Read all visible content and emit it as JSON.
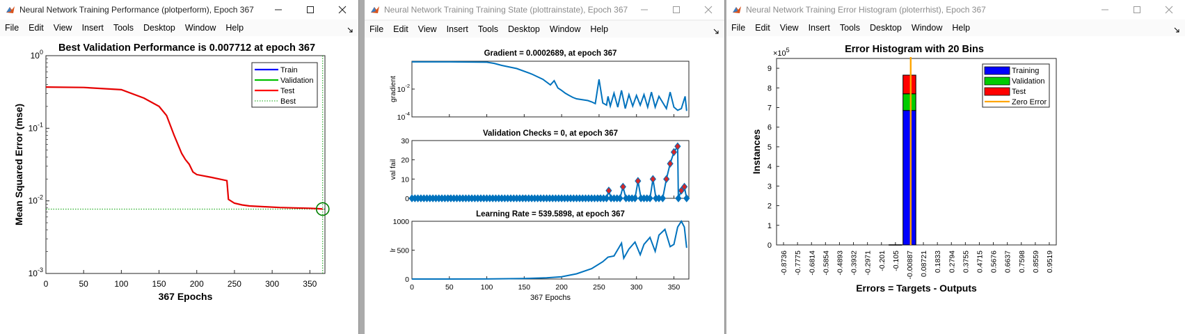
{
  "windows": [
    {
      "title": "Neural Network Training Performance (plotperform), Epoch 367",
      "menu": [
        "File",
        "Edit",
        "View",
        "Insert",
        "Tools",
        "Desktop",
        "Window",
        "Help"
      ]
    },
    {
      "title": "Neural Network Training Training State (plottrainstate), Epoch 367",
      "menu": [
        "File",
        "Edit",
        "View",
        "Insert",
        "Tools",
        "Desktop",
        "Window",
        "Help"
      ]
    },
    {
      "title": "Neural Network Training Error Histogram (ploterrhist), Epoch 367",
      "menu": [
        "File",
        "Edit",
        "View",
        "Insert",
        "Tools",
        "Desktop",
        "Window",
        "Help"
      ]
    }
  ],
  "chart_data": [
    {
      "type": "line",
      "title": "Best Validation Performance is 0.007712 at epoch 367",
      "xlabel": "367 Epochs",
      "ylabel": "Mean Squared Error  (mse)",
      "yscale": "log",
      "xlim": [
        0,
        370
      ],
      "ylim": [
        0.001,
        1
      ],
      "xticks": [
        "0",
        "50",
        "100",
        "150",
        "200",
        "250",
        "300",
        "350"
      ],
      "yticks": [
        {
          "base": "10",
          "exp": "0"
        },
        {
          "base": "10",
          "exp": "-1"
        },
        {
          "base": "10",
          "exp": "-2"
        },
        {
          "base": "10",
          "exp": "-3"
        }
      ],
      "legend": {
        "position": "top-right",
        "entries": [
          {
            "name": "Train",
            "color": "#0000ff",
            "style": "solid"
          },
          {
            "name": "Validation",
            "color": "#00c000",
            "style": "solid"
          },
          {
            "name": "Test",
            "color": "#ff0000",
            "style": "solid"
          },
          {
            "name": "Best",
            "color": "#00a000",
            "style": "dotted"
          }
        ]
      },
      "series": [
        {
          "name": "Test",
          "color": "#e60000",
          "x": [
            0,
            50,
            100,
            130,
            150,
            160,
            170,
            180,
            185,
            190,
            195,
            200,
            220,
            240,
            242,
            250,
            260,
            270,
            290,
            310,
            330,
            350,
            360,
            367
          ],
          "y": [
            0.37,
            0.365,
            0.34,
            0.26,
            0.2,
            0.15,
            0.08,
            0.045,
            0.037,
            0.032,
            0.025,
            0.023,
            0.021,
            0.019,
            0.0105,
            0.0093,
            0.0088,
            0.0085,
            0.0083,
            0.0081,
            0.008,
            0.0079,
            0.0078,
            0.007712
          ]
        }
      ],
      "best": {
        "epoch": 367,
        "value": 0.007712
      }
    },
    {
      "type": "line",
      "panels": [
        {
          "title": "Gradient = 0.0002689, at epoch 367",
          "ylabel": "gradient",
          "yscale": "log",
          "ylim": [
            0.0001,
            1
          ],
          "yticks": [
            {
              "base": "10",
              "exp": "-2"
            },
            {
              "base": "10",
              "exp": "-4"
            }
          ],
          "x": [
            0,
            50,
            100,
            110,
            120,
            140,
            160,
            175,
            185,
            190,
            195,
            200,
            205,
            210,
            215,
            220,
            235,
            240,
            245,
            250,
            255,
            260,
            262,
            265,
            270,
            275,
            280,
            285,
            290,
            295,
            300,
            305,
            310,
            315,
            320,
            325,
            330,
            340,
            345,
            350,
            355,
            360,
            365,
            367
          ],
          "y": [
            0.9,
            0.9,
            0.85,
            0.7,
            0.5,
            0.3,
            0.12,
            0.05,
            0.02,
            0.04,
            0.012,
            0.008,
            0.005,
            0.0035,
            0.0025,
            0.002,
            0.0015,
            0.0012,
            0.0009,
            0.05,
            0.001,
            0.0007,
            0.003,
            0.0006,
            0.005,
            0.0005,
            0.008,
            0.0004,
            0.004,
            0.0006,
            0.0035,
            0.0007,
            0.004,
            0.0005,
            0.006,
            0.0005,
            0.003,
            0.0004,
            0.006,
            0.0005,
            0.0003,
            0.0004,
            0.003,
            0.0002689
          ]
        },
        {
          "title": "Validation Checks = 0, at epoch 367",
          "ylabel": "val fail",
          "ylim": [
            0,
            30
          ],
          "yticks": [
            "0",
            "10",
            "20",
            "30"
          ],
          "x": [
            0,
            260,
            263,
            266,
            270,
            278,
            282,
            286,
            290,
            298,
            302,
            306,
            310,
            318,
            322,
            326,
            330,
            335,
            340,
            345,
            350,
            355,
            356,
            360,
            364,
            367
          ],
          "y": [
            0,
            0,
            4,
            0,
            0,
            0,
            6,
            0,
            0,
            0,
            9,
            0,
            0,
            0,
            10,
            0,
            0,
            0,
            10,
            18,
            24,
            27,
            0,
            4,
            6,
            0
          ]
        },
        {
          "title": "Learning Rate = 539.5898, at epoch 367",
          "ylabel": "lr",
          "xlabel": "367 Epochs",
          "ylim": [
            0,
            1000
          ],
          "yticks": [
            "0",
            "500",
            "1000"
          ],
          "x": [
            0,
            50,
            100,
            150,
            180,
            200,
            220,
            240,
            255,
            262,
            270,
            280,
            283,
            290,
            298,
            305,
            310,
            318,
            325,
            330,
            338,
            345,
            350,
            355,
            360,
            364,
            367
          ],
          "y": [
            0,
            0,
            1,
            8,
            20,
            40,
            90,
            180,
            300,
            380,
            400,
            620,
            360,
            520,
            640,
            420,
            600,
            720,
            480,
            760,
            860,
            560,
            600,
            900,
            1000,
            900,
            540
          ]
        }
      ],
      "xlim": [
        0,
        370
      ],
      "xticks": [
        "0",
        "50",
        "100",
        "150",
        "200",
        "250",
        "300",
        "350"
      ]
    },
    {
      "type": "bar",
      "title": "Error Histogram with 20 Bins",
      "xlabel": "Errors = Targets - Outputs",
      "ylabel": "Instances",
      "yexponent": "5",
      "ylim": [
        0,
        9.5
      ],
      "yticks": [
        "0",
        "1",
        "2",
        "3",
        "4",
        "5",
        "6",
        "7",
        "8",
        "9"
      ],
      "categories": [
        "-0.8736",
        "-0.7775",
        "-0.6814",
        "-0.5854",
        "-0.4893",
        "-0.3932",
        "-0.2971",
        "-0.201",
        "-0.105",
        "-0.00887",
        "0.08721",
        "0.1833",
        "0.2794",
        "0.3755",
        "0.4715",
        "0.5676",
        "0.6637",
        "0.7598",
        "0.8559",
        "0.9519"
      ],
      "series": [
        {
          "name": "Training",
          "color": "#0000ff",
          "values": [
            0,
            0,
            0,
            0,
            0,
            0,
            0,
            0,
            0.01,
            6.85,
            0,
            0,
            0,
            0,
            0,
            0,
            0,
            0,
            0,
            0
          ]
        },
        {
          "name": "Validation",
          "color": "#00cc00",
          "values": [
            0,
            0,
            0,
            0,
            0,
            0,
            0,
            0,
            0,
            0.85,
            0,
            0,
            0,
            0,
            0,
            0,
            0,
            0,
            0,
            0
          ]
        },
        {
          "name": "Test",
          "color": "#ff0000",
          "values": [
            0,
            0,
            0,
            0,
            0,
            0,
            0,
            0,
            0,
            0.95,
            0,
            0,
            0,
            0,
            0,
            0,
            0,
            0,
            0,
            0
          ]
        }
      ],
      "zero_error": {
        "name": "Zero Error",
        "color": "#ffa500",
        "x": 0
      },
      "legend": {
        "position": "top-right"
      }
    }
  ]
}
